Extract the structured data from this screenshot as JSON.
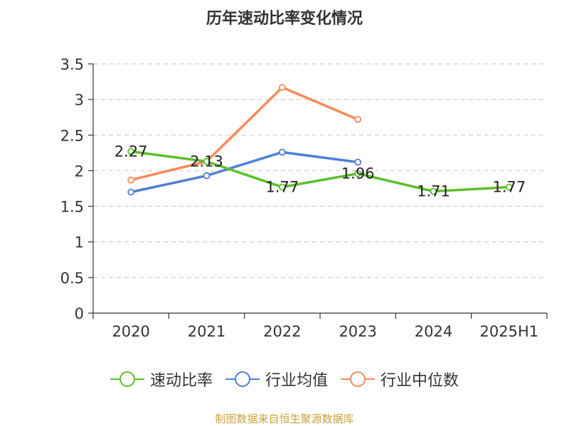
{
  "chart_data": {
    "type": "line",
    "title": "历年速动比率变化情况",
    "categories": [
      "2020",
      "2021",
      "2022",
      "2023",
      "2024",
      "2025H1"
    ],
    "ylim": [
      0,
      3.5
    ],
    "yticks": [
      "0",
      "0.5",
      "1",
      "1.5",
      "2",
      "2.5",
      "3",
      "3.5"
    ],
    "grid": true,
    "legend_position": "bottom",
    "series": [
      {
        "name": "速动比率",
        "color": "#5dbf2b",
        "values": [
          2.27,
          2.13,
          1.77,
          1.96,
          1.71,
          1.77
        ],
        "labels": [
          "2.27",
          "2.13",
          "1.77",
          "1.96",
          "1.71",
          "1.77"
        ]
      },
      {
        "name": "行业均值",
        "color": "#4f80d6",
        "values": [
          1.7,
          1.93,
          2.26,
          2.12,
          null,
          null
        ]
      },
      {
        "name": "行业中位数",
        "color": "#f58b5a",
        "values": [
          1.87,
          2.13,
          3.17,
          2.72,
          null,
          null
        ]
      }
    ]
  },
  "source_text": "制图数据来自恒生聚源数据库"
}
